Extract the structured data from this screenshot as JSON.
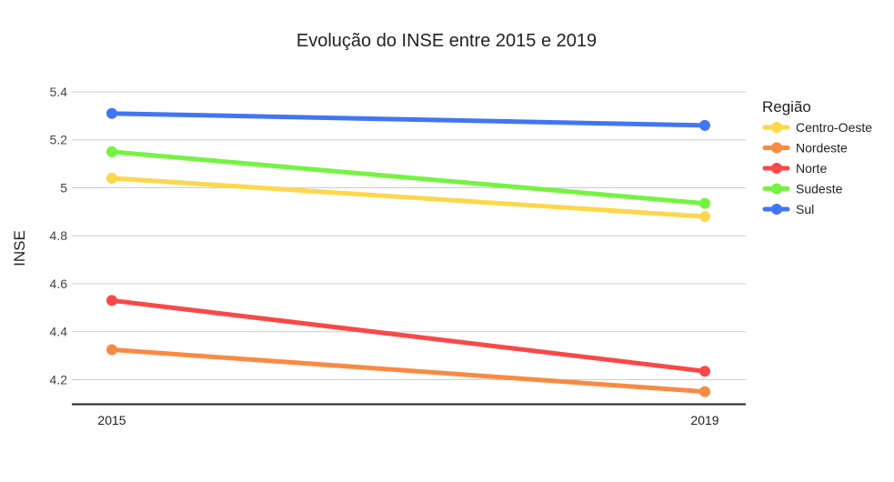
{
  "chart_data": {
    "type": "line",
    "title": "Evolução do INSE entre 2015 e 2019",
    "xlabel": "",
    "ylabel": "INSE",
    "x": [
      "2015",
      "2019"
    ],
    "ylim": [
      4.05,
      5.4
    ],
    "yticks": [
      "4.2",
      "4.4",
      "4.6",
      "4.8",
      "5",
      "5.2",
      "5.4"
    ],
    "grid": true,
    "legend": {
      "title": "Região",
      "position": "right"
    },
    "series": [
      {
        "name": "Centro-Oeste",
        "color": "#fdd74a",
        "values": [
          5.04,
          4.88
        ]
      },
      {
        "name": "Nordeste",
        "color": "#fa8a42",
        "values": [
          4.325,
          4.15
        ]
      },
      {
        "name": "Norte",
        "color": "#f94847",
        "values": [
          4.53,
          4.235
        ]
      },
      {
        "name": "Sudeste",
        "color": "#74f441",
        "values": [
          5.15,
          4.935
        ]
      },
      {
        "name": "Sul",
        "color": "#4275f5",
        "values": [
          5.31,
          5.26
        ]
      }
    ]
  }
}
